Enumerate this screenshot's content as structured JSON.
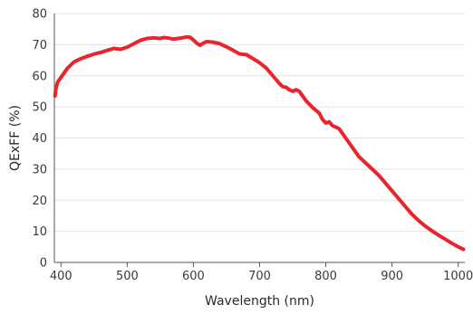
{
  "chart_data": {
    "type": "line",
    "title": "",
    "xlabel": "Wavelength (nm)",
    "ylabel": "QExFF (%)",
    "xlim": [
      390,
      1010
    ],
    "ylim": [
      0,
      80
    ],
    "x_ticks": [
      400,
      500,
      600,
      700,
      800,
      900,
      1000
    ],
    "x_tick_labels": [
      "400",
      "500",
      "600",
      "700",
      "800",
      "900",
      "1000"
    ],
    "y_ticks": [
      0,
      10,
      20,
      30,
      40,
      50,
      60,
      70,
      80
    ],
    "y_tick_labels": [
      "0",
      "10",
      "20",
      "30",
      "40",
      "50",
      "60",
      "70",
      "80"
    ],
    "grid": "horizontal",
    "line_color": "#e8242d",
    "series": [
      {
        "x": [
          391,
          392,
          395,
          400,
          405,
          410,
          420,
          430,
          440,
          445,
          450,
          460,
          470,
          480,
          490,
          500,
          510,
          520,
          530,
          540,
          550,
          555,
          560,
          570,
          580,
          590,
          595,
          600,
          605,
          610,
          615,
          620,
          630,
          640,
          650,
          660,
          670,
          680,
          690,
          700,
          710,
          720,
          730,
          735,
          740,
          745,
          750,
          755,
          760,
          765,
          770,
          780,
          790,
          795,
          800,
          805,
          810,
          820,
          830,
          840,
          850,
          860,
          870,
          880,
          890,
          900,
          910,
          920,
          930,
          940,
          950,
          960,
          970,
          980,
          990,
          1000,
          1008
        ],
        "y": [
          53.5,
          55.5,
          58,
          59.5,
          61,
          62.5,
          64.5,
          65.5,
          66.3,
          66.6,
          67,
          67.5,
          68.2,
          68.8,
          68.5,
          69.2,
          70.3,
          71.4,
          72,
          72.2,
          72,
          72.3,
          72.2,
          71.8,
          72.1,
          72.5,
          72.4,
          71.5,
          70.5,
          69.8,
          70.5,
          71,
          70.8,
          70.3,
          69.3,
          68.2,
          67,
          66.8,
          65.5,
          64.2,
          62.5,
          60,
          57.5,
          56.5,
          56.3,
          55.5,
          55,
          55.5,
          55,
          53.5,
          52,
          49.8,
          48,
          46,
          44.8,
          45.2,
          44,
          43,
          40,
          37,
          34,
          32,
          30,
          28,
          25.5,
          23,
          20.5,
          18,
          15.5,
          13.5,
          11.7,
          10.2,
          8.8,
          7.5,
          6.2,
          5,
          4.2
        ]
      }
    ]
  }
}
